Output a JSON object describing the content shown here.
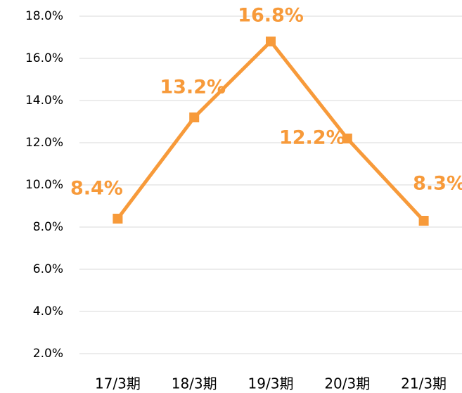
{
  "chart_data": {
    "type": "line",
    "categories": [
      "17/3期",
      "18/3期",
      "19/3期",
      "20/3期",
      "21/3期"
    ],
    "series": [
      {
        "name": null,
        "color": "#f79a3a",
        "values": [
          8.4,
          13.2,
          16.8,
          12.2,
          8.3
        ],
        "value_labels": [
          "8.4%",
          "13.2%",
          "16.8%",
          "12.2%",
          "8.3%"
        ]
      }
    ],
    "ylim": [
      2,
      18
    ],
    "yticks": [
      {
        "value": 2,
        "label": "2.0%"
      },
      {
        "value": 4,
        "label": "4.0%"
      },
      {
        "value": 6,
        "label": "6.0%"
      },
      {
        "value": 8,
        "label": "8.0%"
      },
      {
        "value": 10,
        "label": "10.0%"
      },
      {
        "value": 12,
        "label": "12.0%"
      },
      {
        "value": 14,
        "label": "14.0%"
      },
      {
        "value": 16,
        "label": "16.0%"
      },
      {
        "value": 18,
        "label": "18.0%"
      }
    ],
    "grid": true
  }
}
